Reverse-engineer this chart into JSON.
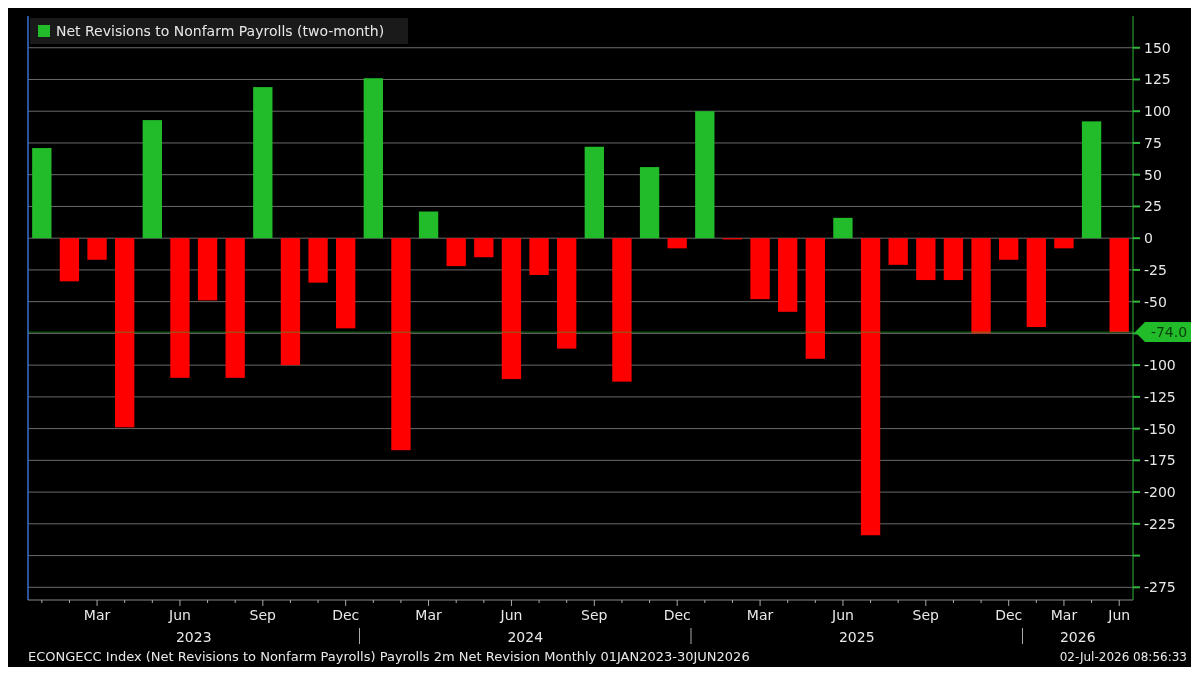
{
  "chart_data": {
    "type": "bar",
    "categories": [
      null,
      null,
      "Mar",
      null,
      null,
      "Jun",
      null,
      null,
      "Sep",
      null,
      null,
      "Dec",
      null,
      null,
      "Mar",
      null,
      null,
      "Jun",
      null,
      null,
      "Sep",
      null,
      null,
      "Dec",
      null,
      null,
      "Mar",
      null,
      null,
      "Jun",
      null,
      null,
      "Sep",
      null,
      null,
      "Dec",
      null,
      "Mar",
      null,
      "Jun"
    ],
    "series": [
      {
        "name": "Net Revisions to Nonfarm Payrolls (two-month)",
        "values": [
          71,
          -34,
          -17,
          -149,
          93,
          -110,
          -49,
          -110,
          119,
          -100,
          -35,
          -71,
          126,
          -167,
          21,
          -22,
          -15,
          -111,
          -29,
          -87,
          72,
          -113,
          56,
          -8,
          100,
          -1,
          -48,
          -58,
          -95,
          16,
          -234,
          -21,
          -33,
          -33,
          -75,
          -17,
          -70,
          -8,
          92,
          -74
        ]
      }
    ],
    "colors": [
      "#22bb2a",
      "#ff0000",
      "#ff0000",
      "#ff0000",
      "#22bb2a",
      "#ff0000",
      "#ff0000",
      "#ff0000",
      "#22bb2a",
      "#ff0000",
      "#ff0000",
      "#ff0000",
      "#22bb2a",
      "#ff0000",
      "#22bb2a",
      "#ff0000",
      "#ff0000",
      "#ff0000",
      "#ff0000",
      "#ff0000",
      "#22bb2a",
      "#ff0000",
      "#22bb2a",
      "#ff0000",
      "#22bb2a",
      "#ff0000",
      "#ff0000",
      "#ff0000",
      "#ff0000",
      "#22bb2a",
      "#ff0000",
      "#ff0000",
      "#ff0000",
      "#ff0000",
      "#ff0000",
      "#ff0000",
      "#ff0000",
      "#ff0000",
      "#22bb2a",
      "#ff0000"
    ],
    "ylim": [
      -285,
      175
    ],
    "yticks": [
      150,
      125,
      100,
      75,
      50,
      25,
      0,
      -25,
      -50,
      {
        "value": -75,
        "label": null
      },
      -100,
      -125,
      -150,
      -175,
      -200,
      -225,
      {
        "value": -250,
        "label": null
      },
      -275
    ],
    "grid": "y",
    "legend": "top left",
    "ref_lines": [
      {
        "axis": "y",
        "value": -74,
        "label": "-74.0",
        "color": "#22bb2a"
      }
    ],
    "annotations": [
      "2023",
      "2024",
      "2025",
      "2026",
      "ECONGECC Index (Net Revisions to Nonfarm Payrolls) Payrolls 2m Net Revision Monthly 01JAN2023-30JUN2026",
      "02-Jul-2026 08:56:33"
    ]
  }
}
